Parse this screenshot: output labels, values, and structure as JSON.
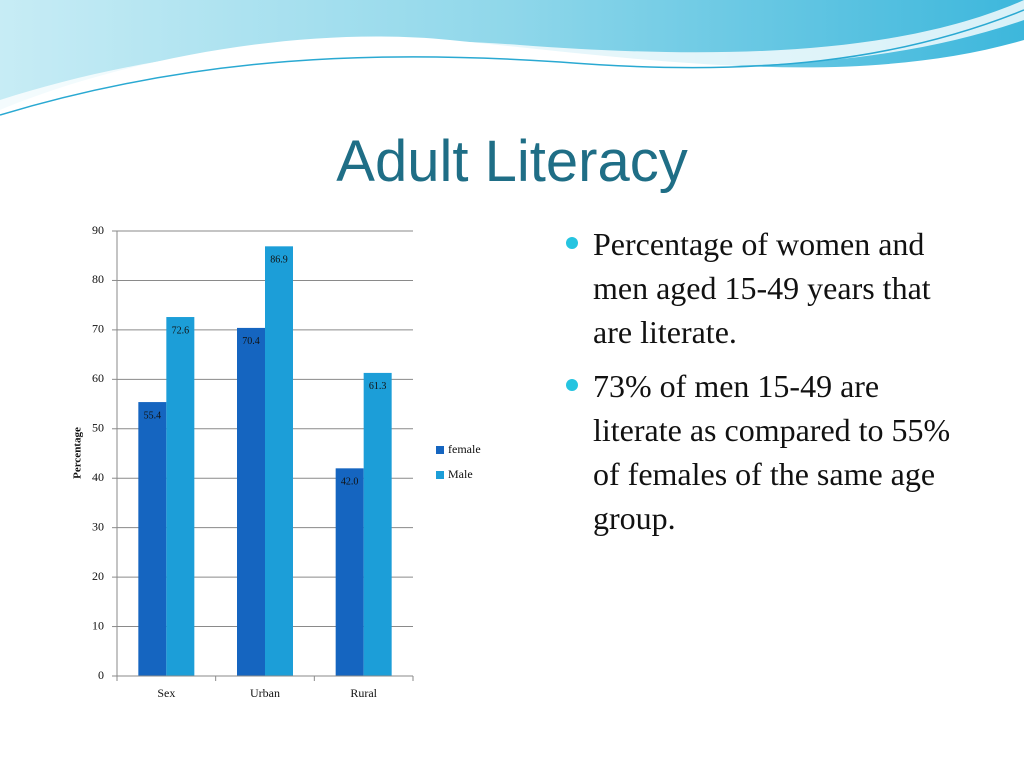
{
  "title": "Adult Literacy",
  "bullets": [
    "Percentage of women and men aged 15-49 years that are literate.",
    "73% of men 15-49 are literate as compared to 55% of females of the same age group."
  ],
  "chart_data": {
    "type": "bar",
    "y_label": "Percentage",
    "categories": [
      "Sex",
      "Urban",
      "Rural"
    ],
    "series": [
      {
        "name": "female",
        "color": "#1565c0",
        "values": [
          55.4,
          70.4,
          42
        ],
        "value_labels": [
          "55.4",
          "70.4",
          "42.0"
        ]
      },
      {
        "name": "Male",
        "color": "#1c9ed8",
        "values": [
          72.6,
          86.9,
          61.3
        ]
      }
    ],
    "ylim": [
      0,
      90
    ],
    "yticks": [
      0,
      10,
      20,
      30,
      40,
      50,
      60,
      70,
      80,
      90
    ],
    "grid": true,
    "legend": "right"
  }
}
